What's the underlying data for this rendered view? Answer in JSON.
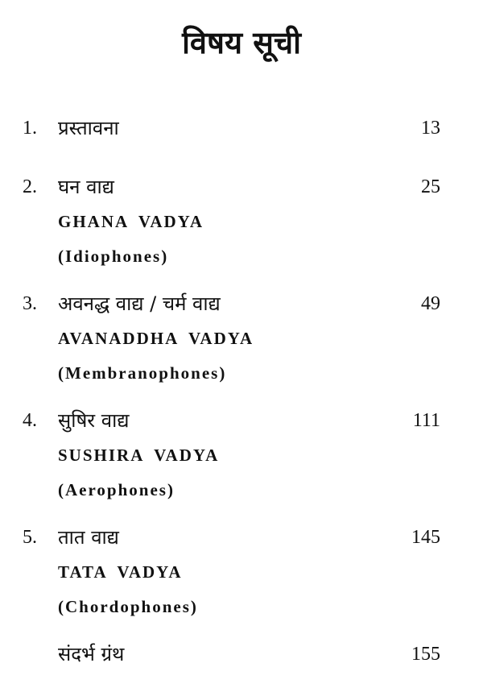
{
  "page": {
    "title": "विषय सूची",
    "entries": [
      {
        "num": "1.",
        "hindi": "प्रस्तावना",
        "english": "",
        "paren": "",
        "page": "13"
      },
      {
        "num": "2.",
        "hindi": "घन वाद्य",
        "english": "GHANA VADYA",
        "paren": "(Idiophones)",
        "page": "25"
      },
      {
        "num": "3.",
        "hindi": "अवनद्ध वाद्य / चर्म वाद्य",
        "english": "AVANADDHA VADYA",
        "paren": "(Membranophones)",
        "page": "49"
      },
      {
        "num": "4.",
        "hindi": "सुषिर वाद्य",
        "english": "SUSHIRA VADYA",
        "paren": "(Aerophones)",
        "page": "111"
      },
      {
        "num": "5.",
        "hindi": "तात वाद्य",
        "english": "TATA VADYA",
        "paren": "(Chordophones)",
        "page": "145"
      },
      {
        "num": "",
        "hindi": "संदर्भ ग्रंथ",
        "english": "",
        "paren": "",
        "page": "155"
      }
    ]
  }
}
